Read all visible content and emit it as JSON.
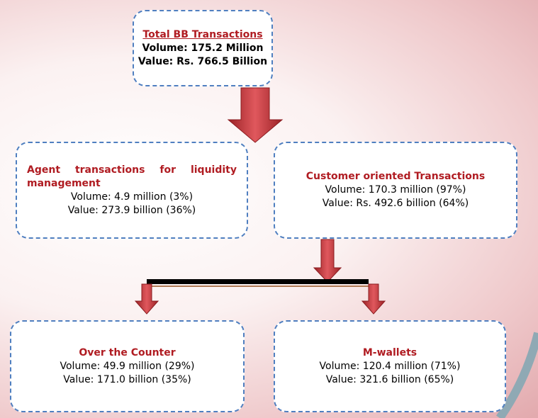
{
  "nodes": [
    {
      "title": "Total BB Transactions",
      "lines": [
        "Volume: 175.2 Million",
        "Value: Rs. 766.5 Billion"
      ]
    },
    {
      "title": "Agent transactions for liquidity management",
      "lines": [
        "Volume:  4.9 million (3%)",
        "Value: 273.9 billion (36%)"
      ]
    },
    {
      "title": "Customer oriented Transactions",
      "lines": [
        "Volume: 170.3 million (97%)",
        "Value: Rs. 492.6 billion (64%)"
      ]
    },
    {
      "title": "Over the Counter",
      "lines": [
        "Volume: 49.9 million (29%)",
        "Value: 171.0 billion (35%)"
      ]
    },
    {
      "title": "M-wallets",
      "lines": [
        "Volume: 120.4 million (71%)",
        "Value: 321.6 billion (65%)"
      ]
    }
  ]
}
